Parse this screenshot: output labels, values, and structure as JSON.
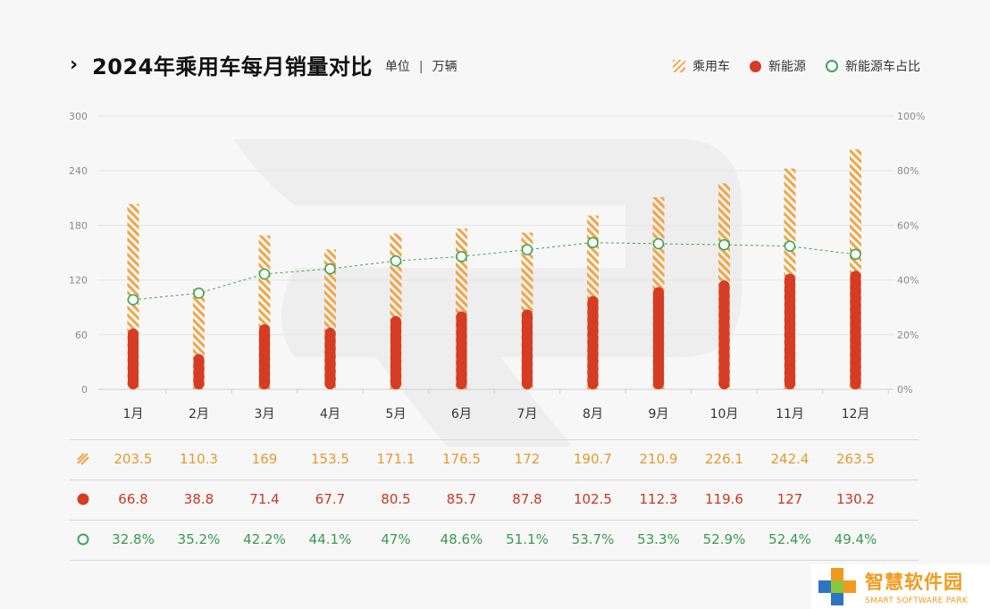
{
  "header": {
    "chevron": "›",
    "title": "2024年乘用车每月销量对比",
    "unit_label": "单位",
    "unit_sep": "|",
    "unit_value": "万辆"
  },
  "legend": {
    "total": "乘用车",
    "nev": "新能源",
    "ratio": "新能源车占比"
  },
  "colors": {
    "total": "#f0a545",
    "nev": "#d63c24",
    "ratio": "#3fa55a"
  },
  "chart_data": {
    "type": "bar",
    "categories": [
      "1月",
      "2月",
      "3月",
      "4月",
      "5月",
      "6月",
      "7月",
      "8月",
      "9月",
      "10月",
      "11月",
      "12月"
    ],
    "series": [
      {
        "name": "乘用车",
        "values": [
          203.5,
          110.3,
          169,
          153.5,
          171.1,
          176.5,
          172,
          190.7,
          210.9,
          226.1,
          242.4,
          263.5
        ]
      },
      {
        "name": "新能源",
        "values": [
          66.8,
          38.8,
          71.4,
          67.7,
          80.5,
          85.7,
          87.8,
          102.5,
          112.3,
          119.6,
          127,
          130.2
        ]
      },
      {
        "name": "新能源车占比",
        "values": [
          32.8,
          35.2,
          42.2,
          44.1,
          47,
          48.6,
          51.1,
          53.7,
          53.3,
          52.9,
          52.4,
          49.4
        ],
        "axis": "right",
        "type": "line"
      }
    ],
    "ylim": [
      0,
      300
    ],
    "yticks": [
      "0",
      "60",
      "120",
      "180",
      "240",
      "300"
    ],
    "y2lim": [
      0,
      100
    ],
    "y2ticks": [
      "0%",
      "20%",
      "40%",
      "60%",
      "80%",
      "100%"
    ],
    "grid": true,
    "legend_position": "top-right"
  },
  "table": {
    "total_values": [
      "203.5",
      "110.3",
      "169",
      "153.5",
      "171.1",
      "176.5",
      "172",
      "190.7",
      "210.9",
      "226.1",
      "242.4",
      "263.5"
    ],
    "nev_values": [
      "66.8",
      "38.8",
      "71.4",
      "67.7",
      "80.5",
      "85.7",
      "87.8",
      "102.5",
      "112.3",
      "119.6",
      "127",
      "130.2"
    ],
    "ratio_values": [
      "32.8%",
      "35.2%",
      "42.2%",
      "44.1%",
      "47%",
      "48.6%",
      "51.1%",
      "53.7%",
      "53.3%",
      "52.9%",
      "52.4%",
      "49.4%"
    ]
  },
  "watermark": {
    "cn": "智慧软件园",
    "en": "SMART SOFTWARE PARK"
  }
}
